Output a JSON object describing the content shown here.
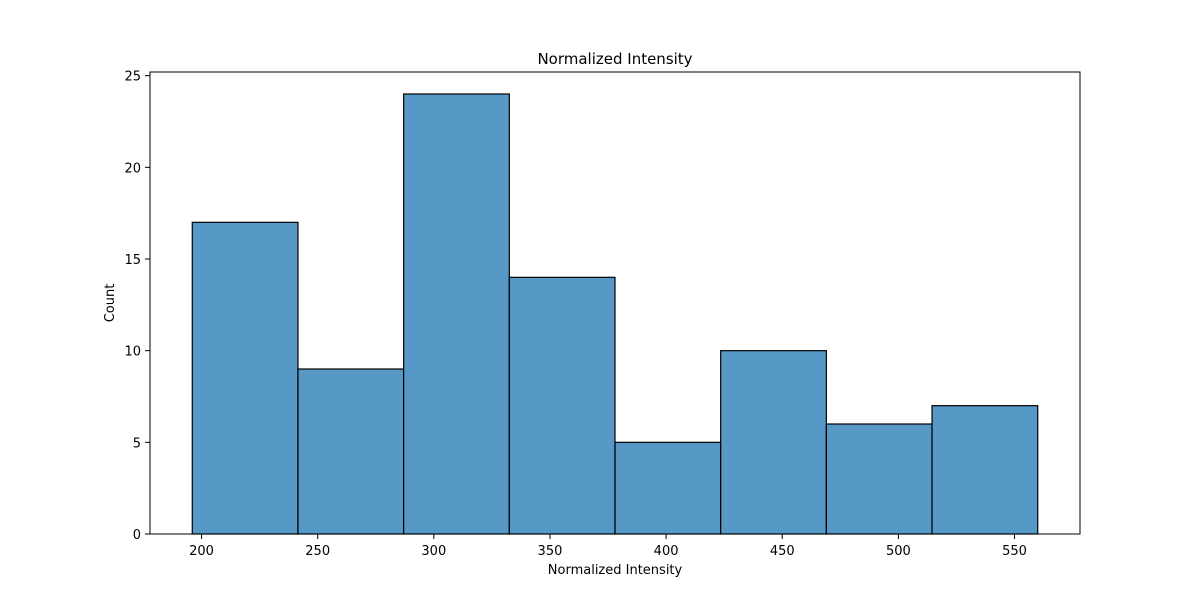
{
  "chart_data": {
    "type": "bar",
    "title": "Normalized Intensity",
    "xlabel": "Normalized Intensity",
    "ylabel": "Count",
    "bins": [
      {
        "x0": 196,
        "x1": 241.5,
        "count": 17
      },
      {
        "x0": 241.5,
        "x1": 287,
        "count": 9
      },
      {
        "x0": 287,
        "x1": 332.5,
        "count": 24
      },
      {
        "x0": 332.5,
        "x1": 378,
        "count": 14
      },
      {
        "x0": 378,
        "x1": 423.5,
        "count": 5
      },
      {
        "x0": 423.5,
        "x1": 469,
        "count": 10
      },
      {
        "x0": 469,
        "x1": 514.5,
        "count": 6
      },
      {
        "x0": 514.5,
        "x1": 560,
        "count": 7
      }
    ],
    "xlim": [
      177.8,
      578.2
    ],
    "ylim": [
      0,
      25.2
    ],
    "xticks": [
      200,
      250,
      300,
      350,
      400,
      450,
      500,
      550
    ],
    "yticks": [
      0,
      5,
      10,
      15,
      20,
      25
    ],
    "grid": false,
    "bar_color": "#5698c6",
    "edge_color": "#000000"
  }
}
